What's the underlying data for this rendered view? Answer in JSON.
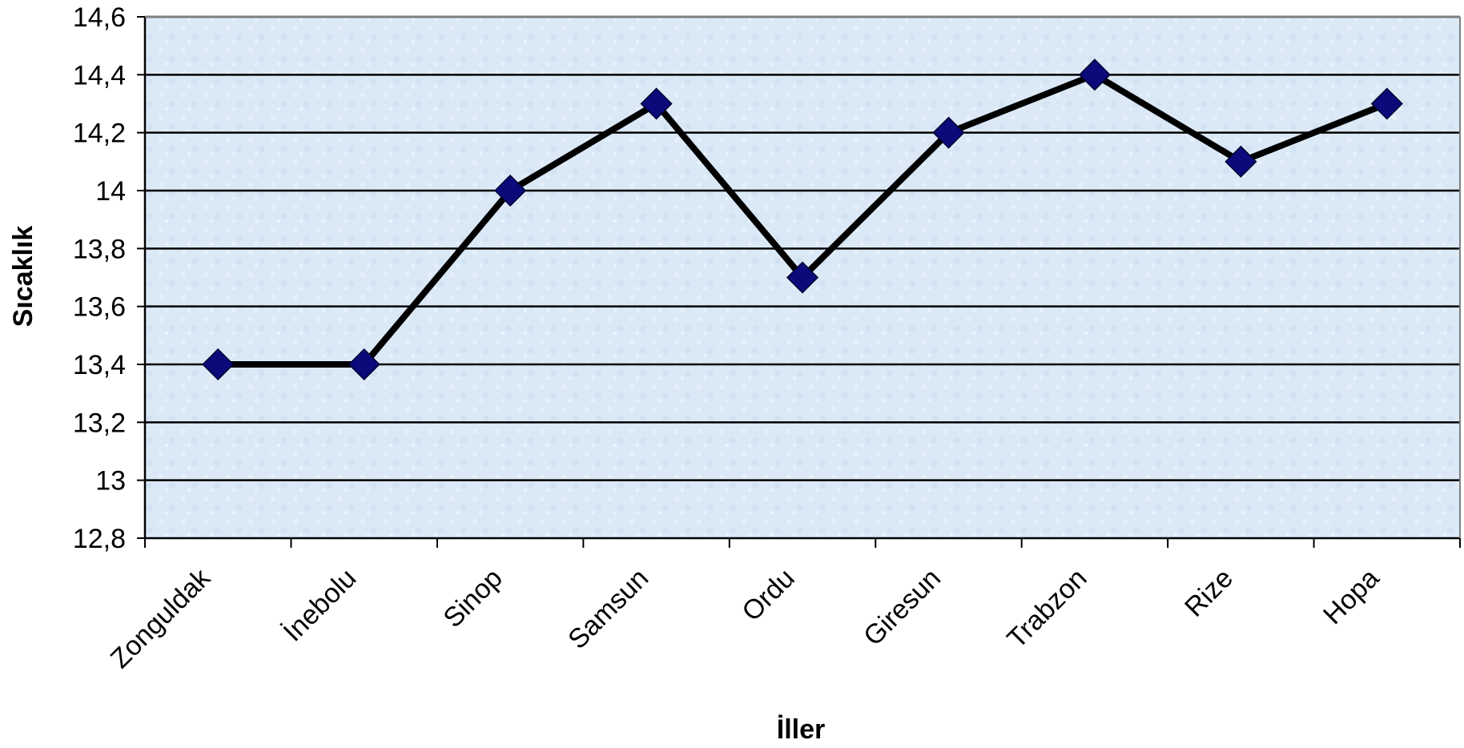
{
  "chart_data": {
    "type": "line",
    "title": "",
    "xlabel": "İller",
    "ylabel": "Sıcaklık",
    "categories": [
      "Zonguldak",
      "İnebolu",
      "Sinop",
      "Samsun",
      "Ordu",
      "Giresun",
      "Trabzon",
      "Rize",
      "Hopa"
    ],
    "series": [
      {
        "values": [
          13.4,
          13.4,
          14.0,
          14.3,
          13.7,
          14.2,
          14.4,
          14.1,
          14.3
        ]
      }
    ],
    "ylim": [
      12.8,
      14.6
    ],
    "yticks": [
      12.8,
      13.0,
      13.2,
      13.4,
      13.6,
      13.8,
      14.0,
      14.2,
      14.4,
      14.6
    ],
    "ytick_labels": [
      "12,8",
      "13",
      "13,2",
      "13,4",
      "13,6",
      "13,8",
      "14",
      "14,2",
      "14,4",
      "14,6"
    ],
    "grid": true,
    "legend": "none",
    "colors": {
      "line": "#000000",
      "marker": "#0a0a7a",
      "plot_background": "#d9e8f7",
      "gridline": "#000000"
    },
    "marker": "diamond"
  }
}
